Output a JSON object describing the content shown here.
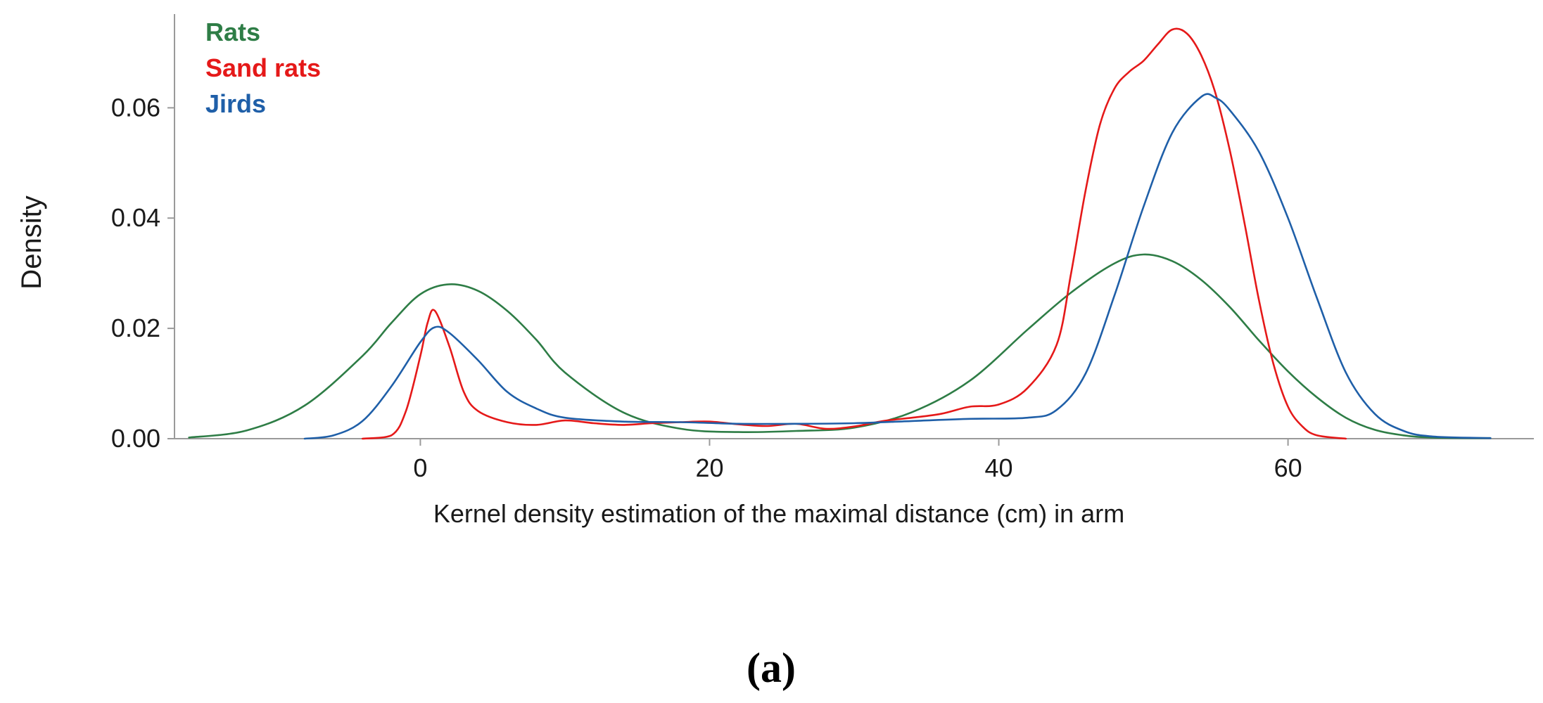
{
  "chart_data": {
    "type": "line",
    "title": "",
    "xlabel": "Kernel density estimation of the maximal distance (cm) in arm",
    "ylabel": "Density",
    "xlim": [
      -17,
      77
    ],
    "ylim": [
      0,
      0.077
    ],
    "xticks": [
      0,
      20,
      40,
      60
    ],
    "xtick_labels": [
      "0",
      "20",
      "40",
      "60"
    ],
    "yticks": [
      0,
      0.02,
      0.04,
      0.06
    ],
    "ytick_labels": [
      "0.00",
      "0.02",
      "0.04",
      "0.06"
    ],
    "grid": false,
    "legend_position": "top-left",
    "panel_label": "(a)",
    "series": [
      {
        "name": "Rats",
        "color": "#2e7d46",
        "x": [
          -16,
          -12,
          -8,
          -4,
          -2,
          0,
          2,
          4,
          6,
          8,
          10,
          14,
          18,
          22,
          26,
          30,
          34,
          38,
          42,
          45,
          48,
          50,
          52,
          54,
          56,
          58,
          60,
          62,
          64,
          66,
          68,
          70,
          74
        ],
        "y": [
          0.0002,
          0.0015,
          0.006,
          0.015,
          0.021,
          0.0262,
          0.028,
          0.0268,
          0.0232,
          0.018,
          0.012,
          0.0048,
          0.0018,
          0.0012,
          0.0014,
          0.002,
          0.0048,
          0.0105,
          0.0198,
          0.0265,
          0.0318,
          0.0334,
          0.0322,
          0.0288,
          0.0238,
          0.0178,
          0.0122,
          0.0075,
          0.0038,
          0.0016,
          0.0006,
          0.0002,
          0.0001
        ]
      },
      {
        "name": "Sand rats",
        "color": "#e51919",
        "x": [
          -4,
          -2,
          -1,
          0,
          0.5,
          1,
          2,
          3,
          4,
          6,
          8,
          10,
          12,
          14,
          16,
          18,
          20,
          22,
          24,
          26,
          28,
          30,
          32,
          34,
          36,
          38,
          40,
          42,
          44,
          45,
          46,
          47,
          48,
          49,
          50,
          51,
          52,
          53,
          54,
          55,
          56,
          57,
          58,
          59,
          60,
          61,
          62,
          64
        ],
        "y": [
          0,
          0.0006,
          0.005,
          0.015,
          0.021,
          0.0232,
          0.0168,
          0.0085,
          0.005,
          0.003,
          0.0025,
          0.0033,
          0.0028,
          0.0025,
          0.0028,
          0.003,
          0.0031,
          0.0026,
          0.0023,
          0.0027,
          0.0018,
          0.0022,
          0.0032,
          0.0038,
          0.0045,
          0.0058,
          0.0062,
          0.0092,
          0.017,
          0.03,
          0.045,
          0.057,
          0.0635,
          0.0665,
          0.0685,
          0.0715,
          0.0742,
          0.0735,
          0.0695,
          0.0625,
          0.052,
          0.039,
          0.025,
          0.0135,
          0.0058,
          0.0022,
          0.0006,
          0
        ]
      },
      {
        "name": "Jirds",
        "color": "#1f5fa8",
        "x": [
          -8,
          -6,
          -4,
          -2,
          0,
          1,
          2,
          4,
          6,
          8,
          10,
          14,
          18,
          22,
          26,
          30,
          34,
          38,
          42,
          44,
          46,
          48,
          50,
          52,
          54,
          55,
          56,
          58,
          60,
          62,
          64,
          66,
          68,
          70,
          74
        ],
        "y": [
          0,
          0.0006,
          0.0032,
          0.0095,
          0.0175,
          0.0202,
          0.0192,
          0.0142,
          0.0085,
          0.0055,
          0.0038,
          0.0031,
          0.003,
          0.0027,
          0.0027,
          0.0028,
          0.0032,
          0.0036,
          0.0038,
          0.0052,
          0.0118,
          0.026,
          0.042,
          0.0555,
          0.062,
          0.0618,
          0.0595,
          0.052,
          0.04,
          0.0255,
          0.012,
          0.0045,
          0.0014,
          0.0004,
          0.0001
        ]
      }
    ]
  }
}
